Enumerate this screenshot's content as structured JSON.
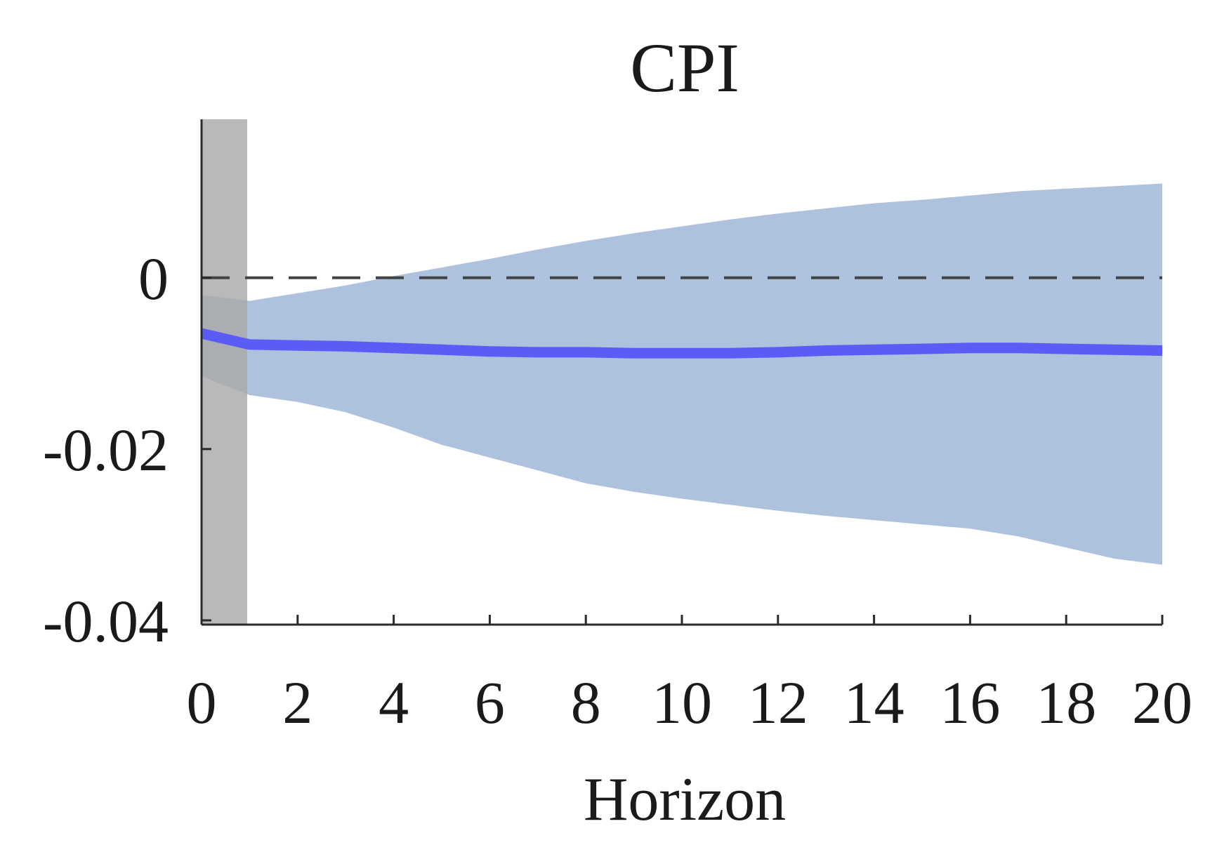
{
  "chart_data": {
    "type": "line",
    "title": "CPI",
    "xlabel": "Horizon",
    "ylabel": "",
    "xlim": [
      0,
      20
    ],
    "ylim": [
      -0.0405,
      0.0185
    ],
    "x_ticks": [
      0,
      2,
      4,
      6,
      8,
      10,
      12,
      14,
      16,
      18,
      20
    ],
    "x_tick_labels": [
      "0",
      "2",
      "4",
      "6",
      "8",
      "10",
      "12",
      "14",
      "16",
      "18",
      "20"
    ],
    "y_ticks": [
      0,
      -0.02,
      -0.04
    ],
    "y_tick_labels": [
      "0",
      "-0.02",
      "-0.04"
    ],
    "grid": false,
    "legend": "none",
    "zero_line": {
      "y": 0,
      "style": "dashed",
      "color": "#444444"
    },
    "shaded_period": {
      "x_start": 0,
      "x_end": 0.95,
      "color": "#a9a9a9"
    },
    "band_color": "#aec2de",
    "line_color": "#5b5cf5",
    "series": [
      {
        "x": [
          0,
          1,
          2,
          3,
          4,
          5,
          6,
          7,
          8,
          9,
          10,
          11,
          12,
          13,
          14,
          15,
          16,
          17,
          18,
          19,
          20
        ],
        "values": [
          -0.0065,
          -0.0078,
          -0.0079,
          -0.008,
          -0.0082,
          -0.0084,
          -0.0086,
          -0.0087,
          -0.0087,
          -0.0088,
          -0.0088,
          -0.0088,
          -0.0087,
          -0.0085,
          -0.0084,
          -0.0083,
          -0.0082,
          -0.0082,
          -0.0083,
          -0.0084,
          -0.0085
        ],
        "lower": [
          -0.0115,
          -0.0137,
          -0.0145,
          -0.0157,
          -0.0175,
          -0.0195,
          -0.021,
          -0.0225,
          -0.024,
          -0.025,
          -0.0258,
          -0.0265,
          -0.0272,
          -0.0278,
          -0.0283,
          -0.0288,
          -0.0293,
          -0.0302,
          -0.0315,
          -0.0328,
          -0.0335
        ],
        "upper": [
          -0.002,
          -0.0027,
          -0.0018,
          -0.0009,
          0.0002,
          0.0012,
          0.0022,
          0.0033,
          0.0043,
          0.0052,
          0.006,
          0.0068,
          0.0075,
          0.0081,
          0.0087,
          0.0091,
          0.0096,
          0.0101,
          0.0104,
          0.0107,
          0.011
        ]
      }
    ]
  }
}
